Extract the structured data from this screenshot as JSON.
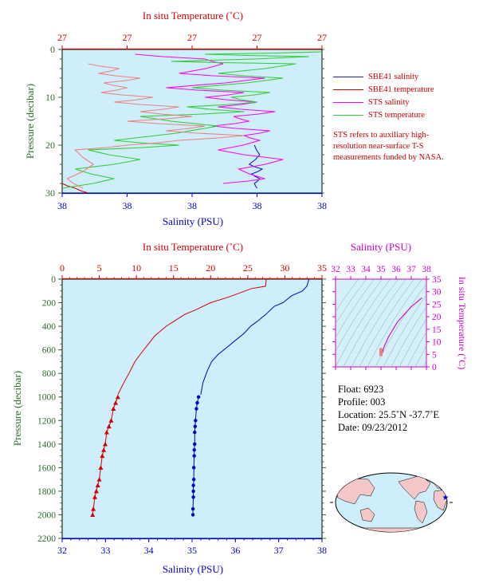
{
  "chart_data": [
    {
      "type": "line",
      "panel": "near-surface",
      "top_axis_label": "In situ Temperature (˚C)",
      "top_tick_labels": [
        "27",
        "27",
        "27",
        "27",
        "27"
      ],
      "bottom_axis_label": "Salinity (PSU)",
      "bottom_tick_labels": [
        "38",
        "38",
        "38",
        "38",
        "38"
      ],
      "ylabel": "Pressure (decibar)",
      "ylim": [
        30,
        0
      ],
      "yticks": [
        0,
        10,
        20,
        30
      ],
      "series": [
        {
          "name": "SBE41 salinity",
          "color": "#1a1acc",
          "x": [
            0.74,
            0.76,
            0.72,
            0.77,
            0.73,
            0.76,
            0.74,
            0.75
          ],
          "y": [
            20,
            22,
            24,
            25,
            26,
            27,
            28,
            29
          ]
        },
        {
          "name": "SBE41 temperature",
          "color": "#d40000",
          "x": [
            0.0,
            0.05,
            0.1
          ],
          "y": [
            28,
            29,
            30
          ]
        },
        {
          "name": "STS salinity",
          "color": "#ff00ff",
          "x": [
            0.28,
            0.55,
            0.62,
            0.45,
            0.78,
            0.4,
            0.7,
            0.55,
            0.75,
            0.6,
            0.82,
            0.66,
            0.72,
            0.58,
            0.8,
            0.7,
            0.76,
            0.6,
            0.85,
            0.68,
            0.78,
            0.62
          ],
          "y": [
            1,
            2,
            3,
            5,
            6,
            8,
            9,
            10,
            11,
            12,
            13,
            14,
            15,
            16,
            17,
            18,
            19,
            21,
            23,
            25,
            27,
            28
          ]
        },
        {
          "name": "STS temperature",
          "color": "#33cc33",
          "x": [
            1.0,
            0.55,
            0.95,
            0.42,
            0.9,
            0.6,
            0.85,
            0.5,
            0.8,
            0.65,
            0.75,
            0.48,
            0.7,
            0.3,
            0.6,
            0.2,
            0.45,
            0.1,
            0.3,
            0.05,
            0.2,
            0.0
          ],
          "y": [
            0.5,
            1,
            1.5,
            2.5,
            3,
            5,
            6,
            8,
            9,
            10,
            11,
            12,
            13,
            14,
            16,
            19,
            20,
            21,
            23,
            25,
            27,
            29
          ]
        },
        {
          "name": "STS temperature (pink)",
          "color": "#f08080",
          "x": [
            0.1,
            0.22,
            0.14,
            0.3,
            0.16,
            0.25,
            0.15,
            0.35,
            0.2,
            0.45,
            0.3,
            0.5,
            0.25,
            0.55,
            0.4,
            0.7,
            0.45,
            0.25,
            0.05,
            0.12,
            0.02,
            0.08
          ],
          "y": [
            3,
            4,
            5,
            6,
            7,
            8,
            9,
            10,
            11,
            12,
            13,
            14,
            15,
            16,
            17,
            18,
            19,
            20,
            21,
            24,
            27,
            29
          ]
        }
      ],
      "legend": [
        "SBE41 salinity",
        "SBE41 temperature",
        "STS salinity",
        "STS temperature"
      ],
      "note": "STS refers to auxiliary high-resolution near-surface T-S measurements funded by NASA."
    },
    {
      "type": "line",
      "panel": "full-profile",
      "top_axis_label": "In situ Temperature (˚C)",
      "xlim_top": [
        0,
        35
      ],
      "top_ticks": [
        0,
        5,
        10,
        15,
        20,
        25,
        30,
        35
      ],
      "bottom_axis_label": "Salinity (PSU)",
      "xlim": [
        32,
        38
      ],
      "bottom_ticks": [
        32,
        33,
        34,
        35,
        36,
        37,
        38
      ],
      "ylabel": "Pressure (decibar)",
      "ylim": [
        2200,
        0
      ],
      "yticks": [
        0,
        200,
        400,
        600,
        800,
        1000,
        1200,
        1400,
        1600,
        1800,
        2000,
        2200
      ],
      "series": [
        {
          "name": "Temperature",
          "axis": "top",
          "color": "#d40000",
          "x": [
            27.5,
            27.4,
            25.5,
            22.5,
            20.0,
            18.0,
            16.5,
            15.0,
            14.0,
            12.5,
            11.5,
            10.5,
            9.8,
            9.0,
            8.3,
            7.5
          ],
          "y": [
            0,
            60,
            80,
            150,
            200,
            260,
            300,
            360,
            400,
            480,
            560,
            640,
            700,
            800,
            880,
            980
          ]
        },
        {
          "name": "Temperature (markers)",
          "axis": "top",
          "color": "#d40000",
          "marker": "triangle",
          "x": [
            7.5,
            7.2,
            6.9,
            6.6,
            6.3,
            6.0,
            5.8,
            5.6,
            5.4,
            5.2,
            5.0,
            4.8,
            4.6,
            4.4,
            4.2,
            4.1
          ],
          "y": [
            1000,
            1050,
            1100,
            1200,
            1250,
            1300,
            1400,
            1450,
            1500,
            1600,
            1700,
            1750,
            1800,
            1850,
            1950,
            2000
          ]
        },
        {
          "name": "Salinity",
          "axis": "bottom",
          "color": "#0000cc",
          "x": [
            37.7,
            37.65,
            37.55,
            37.3,
            37.1,
            36.9,
            36.7,
            36.5,
            36.35,
            36.2,
            36.0,
            35.8,
            35.6,
            35.45,
            35.35,
            35.25,
            35.2
          ],
          "y": [
            0,
            60,
            100,
            140,
            200,
            230,
            300,
            360,
            400,
            460,
            520,
            580,
            640,
            700,
            780,
            880,
            980
          ]
        },
        {
          "name": "Salinity (markers)",
          "axis": "bottom",
          "color": "#0000cc",
          "marker": "circle",
          "x": [
            35.15,
            35.12,
            35.1,
            35.08,
            35.07,
            35.06,
            35.06,
            35.05,
            35.05,
            35.04,
            35.04,
            35.03,
            35.03,
            35.03,
            35.02,
            35.02
          ],
          "y": [
            1000,
            1050,
            1100,
            1200,
            1250,
            1300,
            1400,
            1450,
            1500,
            1600,
            1700,
            1750,
            1800,
            1850,
            1950,
            2000
          ]
        }
      ]
    },
    {
      "type": "scatter",
      "panel": "T-S diagram",
      "top_axis_label": "Salinity (PSU)",
      "xlim": [
        32,
        38
      ],
      "xticks": [
        32,
        33,
        34,
        35,
        36,
        37,
        38
      ],
      "right_axis_label": "In situ Temperature (˚C)",
      "ylim": [
        0,
        35
      ],
      "yticks": [
        0,
        5,
        10,
        15,
        20,
        25,
        30,
        35
      ],
      "series": [
        {
          "name": "T-S curve",
          "color": "#cc00cc",
          "x": [
            35.05,
            35.1,
            35.2,
            35.35,
            35.5,
            35.7,
            35.9,
            36.1,
            36.4,
            36.7,
            37.0,
            37.3,
            37.6,
            37.7
          ],
          "y": [
            4.5,
            6,
            8,
            10,
            12,
            14,
            16,
            18,
            20,
            22,
            24,
            25.5,
            27,
            27.5
          ]
        }
      ]
    }
  ],
  "info": {
    "float": "Float:  6923",
    "profile": "Profile:  003",
    "location": "Location:  25.5˚N  -37.7˚E",
    "date": "Date:  09/23/2012"
  },
  "colors": {
    "plot_bg": "#cdeefa",
    "ts_bg": "#d4f0fb",
    "red": "#d40000",
    "blue": "#0000cc",
    "magenta": "#cc00cc",
    "green": "#2e6b2e"
  },
  "map": {
    "marker": "star",
    "marker_color": "#0000cc",
    "position": "25.5N -37.7E"
  }
}
